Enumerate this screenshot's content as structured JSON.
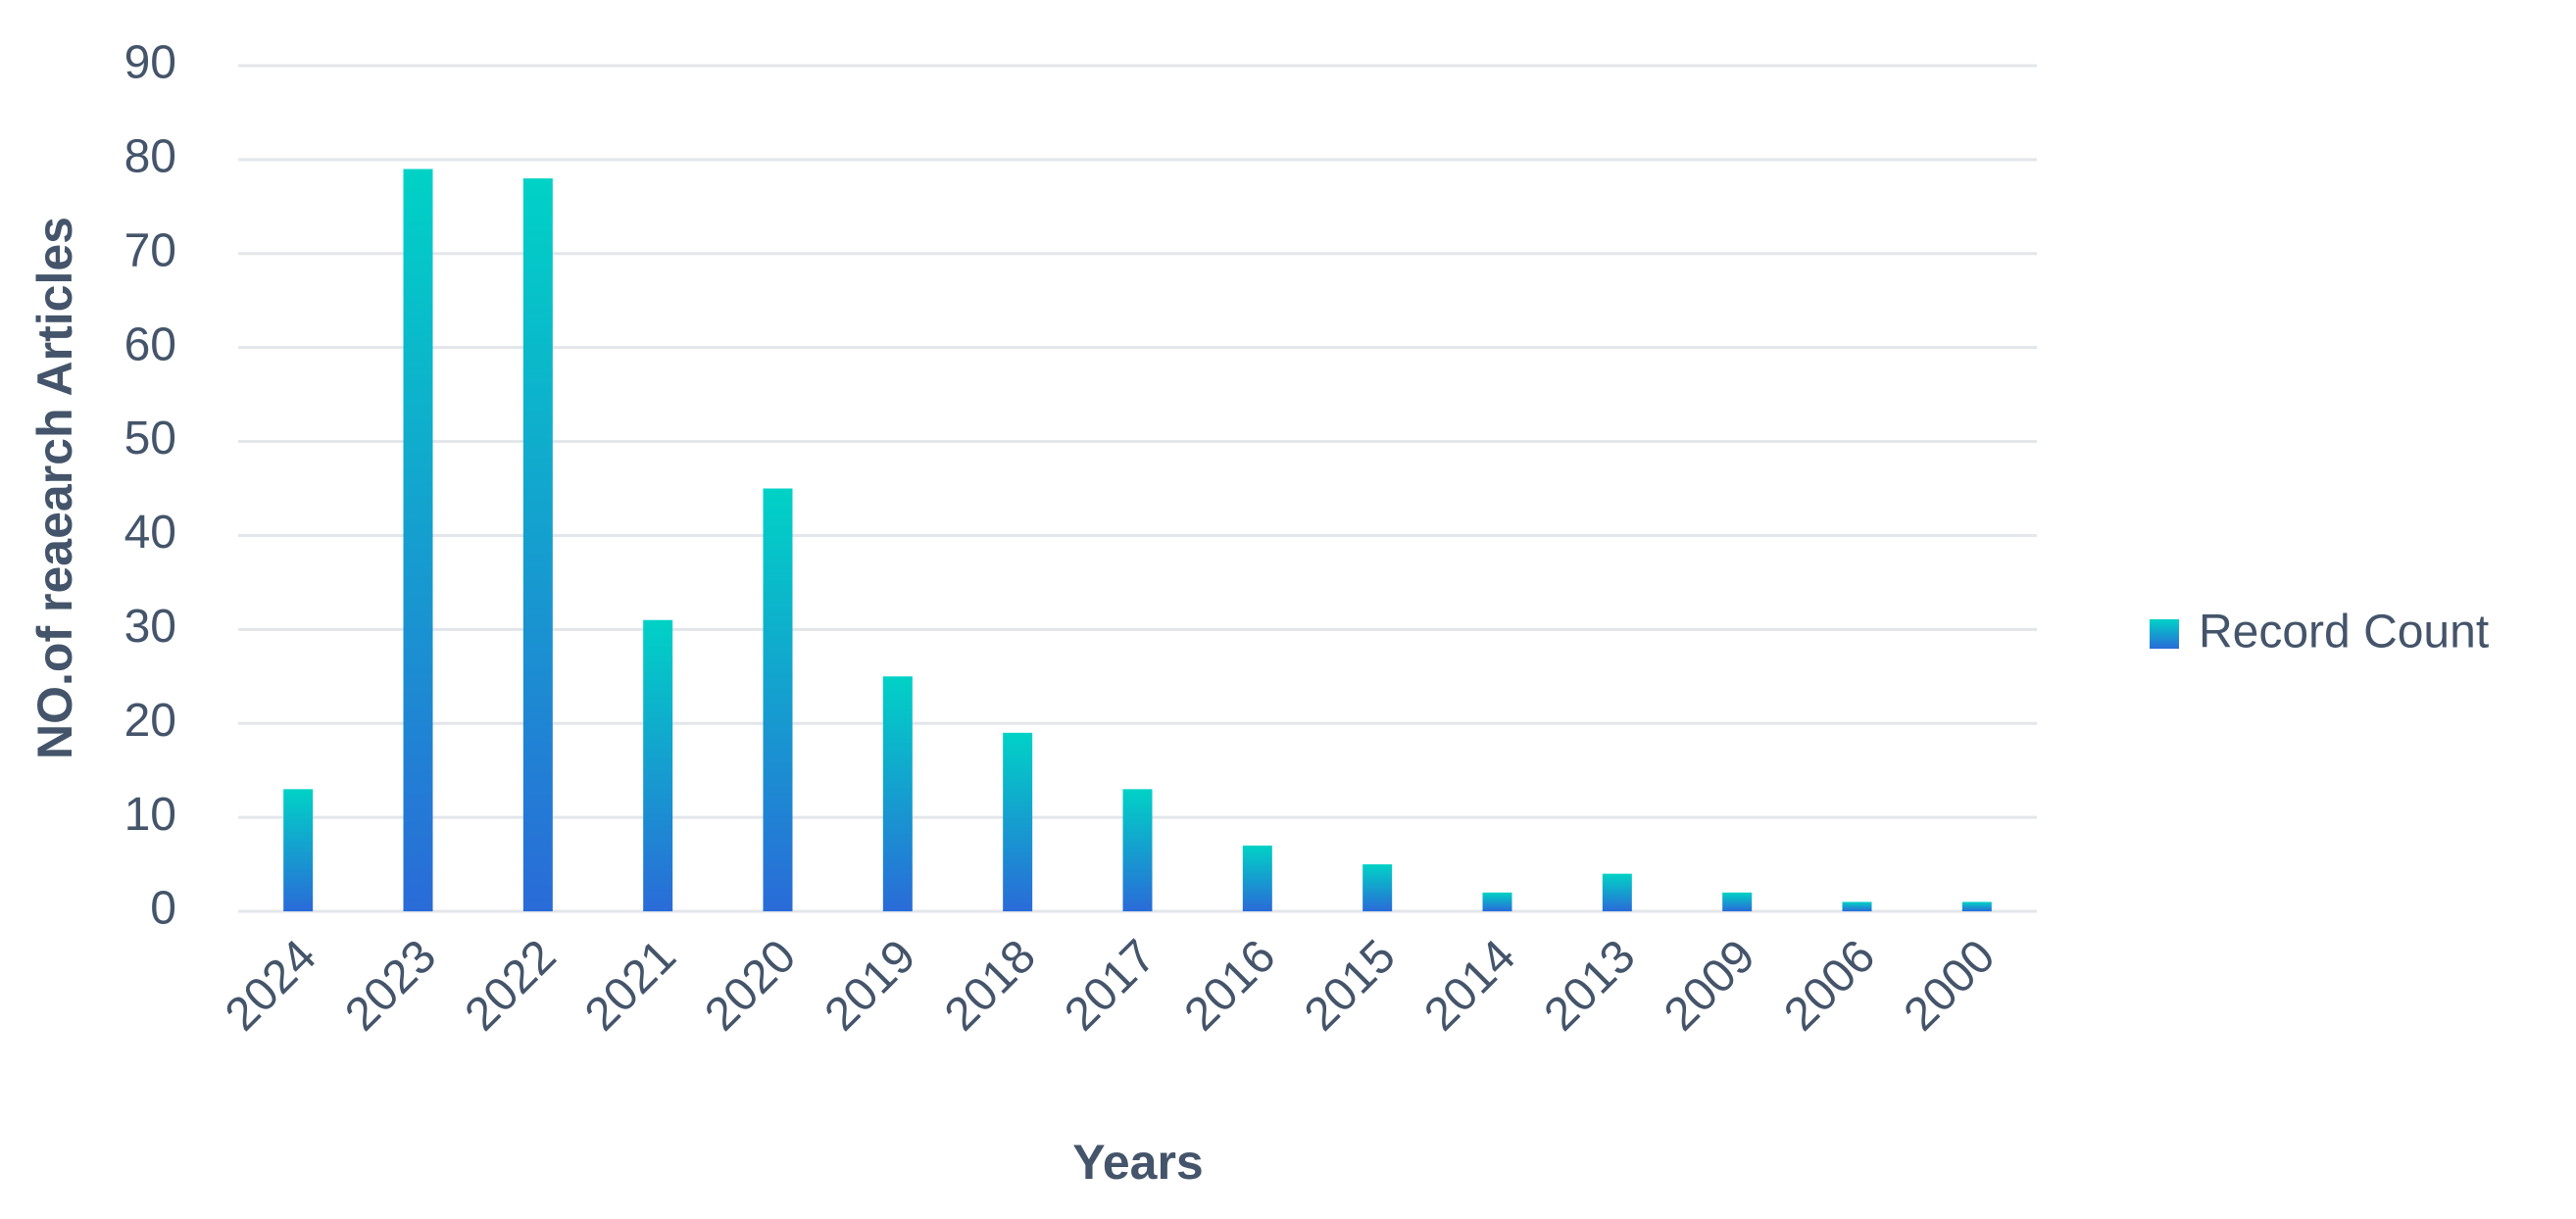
{
  "chart_data": {
    "type": "bar",
    "y_axis_label": "NO.of reaearch Articles",
    "x_axis_label": "Years",
    "categories": [
      "2024",
      "2023",
      "2022",
      "2021",
      "2020",
      "2019",
      "2018",
      "2017",
      "2016",
      "2015",
      "2014",
      "2013",
      "2009",
      "2006",
      "2000"
    ],
    "series": [
      {
        "name": "Record Count",
        "color": [
          "#00d2c6",
          "#2a6bd8"
        ],
        "values": [
          13,
          79,
          78,
          31,
          45,
          25,
          19,
          13,
          7,
          5,
          2,
          4,
          2,
          1,
          1
        ]
      }
    ],
    "ylim": [
      0,
      90
    ],
    "yticks": [
      0,
      10,
      20,
      30,
      40,
      50,
      60,
      70,
      80,
      90
    ],
    "grid": true,
    "legend": "right"
  }
}
